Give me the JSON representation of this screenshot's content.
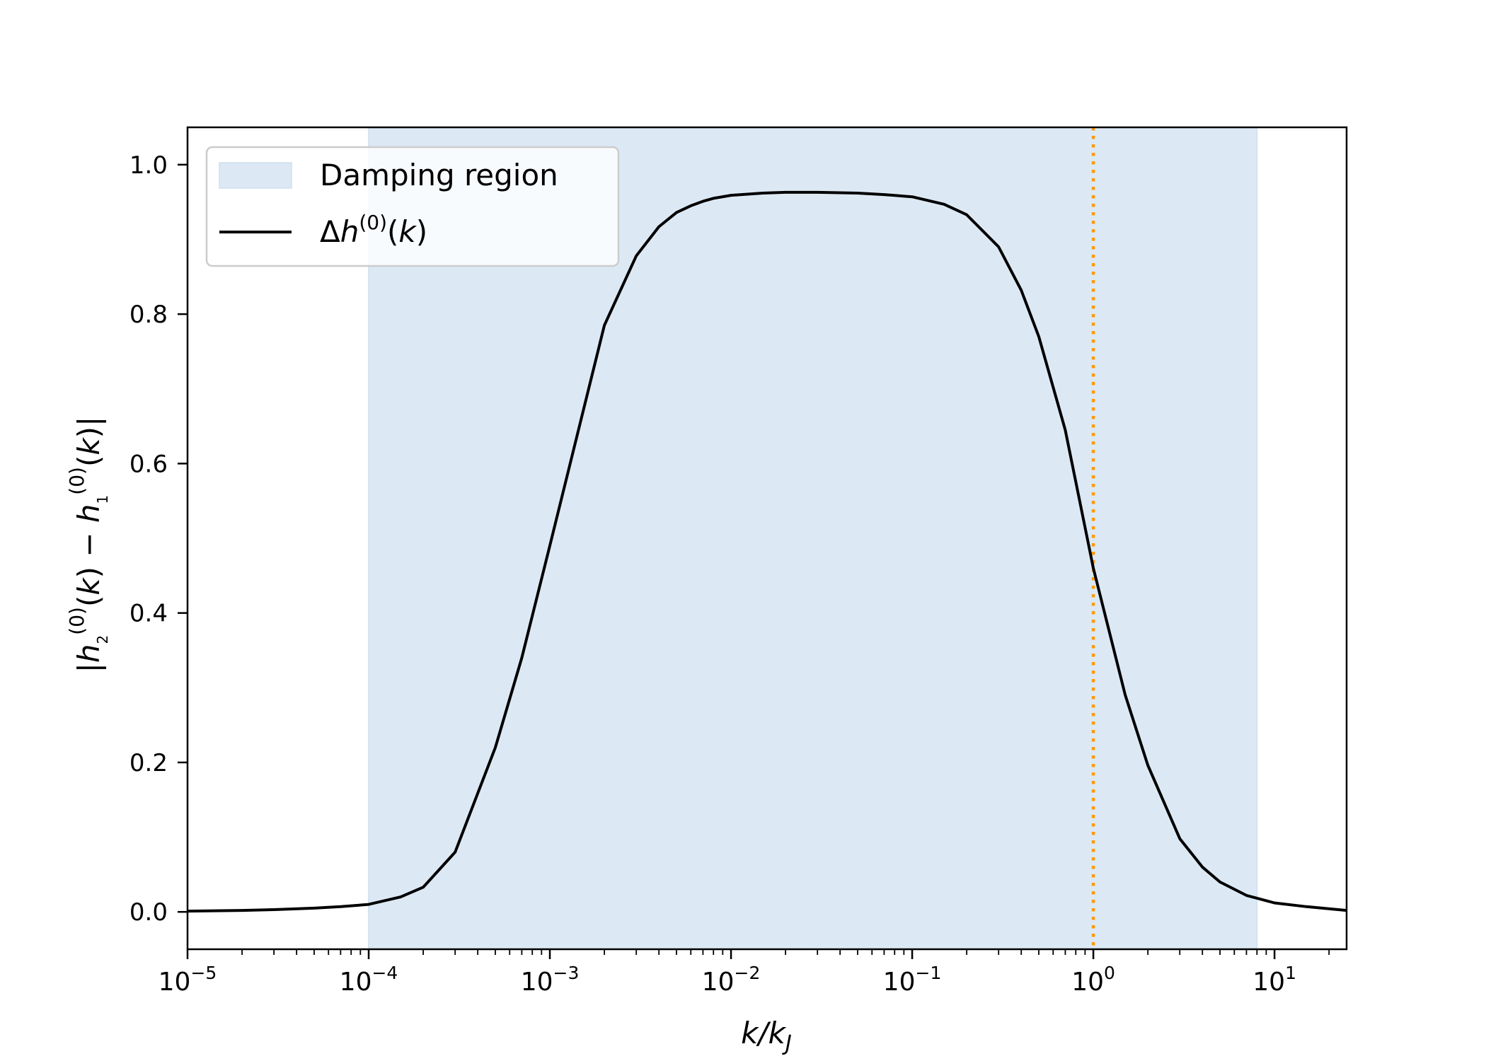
{
  "chart_data": {
    "type": "line",
    "x_scale": "log",
    "xlim": [
      1e-05,
      25
    ],
    "ylim": [
      -0.05,
      1.05
    ],
    "xlabel": "k/kJ",
    "ylabel": "|h2(0)(k) − h1(0)(k)|",
    "grid": false,
    "legend_position": "top-left",
    "x_ticks": [
      {
        "value": 1e-05,
        "base": "10",
        "exp": "−5"
      },
      {
        "value": 0.0001,
        "base": "10",
        "exp": "−4"
      },
      {
        "value": 0.001,
        "base": "10",
        "exp": "−3"
      },
      {
        "value": 0.01,
        "base": "10",
        "exp": "−2"
      },
      {
        "value": 0.1,
        "base": "10",
        "exp": "−1"
      },
      {
        "value": 1,
        "base": "10",
        "exp": "0"
      },
      {
        "value": 10,
        "base": "10",
        "exp": "1"
      }
    ],
    "y_ticks": [
      {
        "value": 0.0,
        "label": "0.0"
      },
      {
        "value": 0.2,
        "label": "0.2"
      },
      {
        "value": 0.4,
        "label": "0.4"
      },
      {
        "value": 0.6,
        "label": "0.6"
      },
      {
        "value": 0.8,
        "label": "0.8"
      },
      {
        "value": 1.0,
        "label": "1.0"
      }
    ],
    "shaded_region": {
      "name": "Damping region",
      "x_start": 0.0001,
      "x_end": 8,
      "color": "#dce9f5"
    },
    "vertical_line": {
      "x": 1,
      "color": "#ff9900",
      "style": "dotted"
    },
    "series": [
      {
        "name": "Δh(0)(k)",
        "color": "#000000",
        "x": [
          1e-05,
          2e-05,
          3e-05,
          5e-05,
          7e-05,
          0.0001,
          0.00015,
          0.0002,
          0.0003,
          0.0005,
          0.0007,
          0.001,
          0.002,
          0.003,
          0.004,
          0.005,
          0.006,
          0.007,
          0.008,
          0.01,
          0.015,
          0.02,
          0.03,
          0.05,
          0.07,
          0.1,
          0.15,
          0.2,
          0.3,
          0.4,
          0.5,
          0.7,
          1,
          1.5,
          2,
          3,
          4,
          5,
          7,
          10,
          15,
          25
        ],
        "y": [
          0.001,
          0.002,
          0.003,
          0.005,
          0.007,
          0.01,
          0.02,
          0.033,
          0.08,
          0.22,
          0.34,
          0.49,
          0.785,
          0.878,
          0.917,
          0.936,
          0.945,
          0.951,
          0.955,
          0.959,
          0.962,
          0.963,
          0.963,
          0.962,
          0.96,
          0.957,
          0.947,
          0.933,
          0.89,
          0.832,
          0.77,
          0.645,
          0.46,
          0.29,
          0.196,
          0.098,
          0.06,
          0.04,
          0.022,
          0.012,
          0.007,
          0.002
        ]
      }
    ],
    "legend": [
      {
        "label": "Damping region",
        "kind": "patch",
        "color": "#dce9f5"
      },
      {
        "label": "Δh(0)(k)",
        "kind": "line",
        "color": "#000000"
      }
    ]
  }
}
